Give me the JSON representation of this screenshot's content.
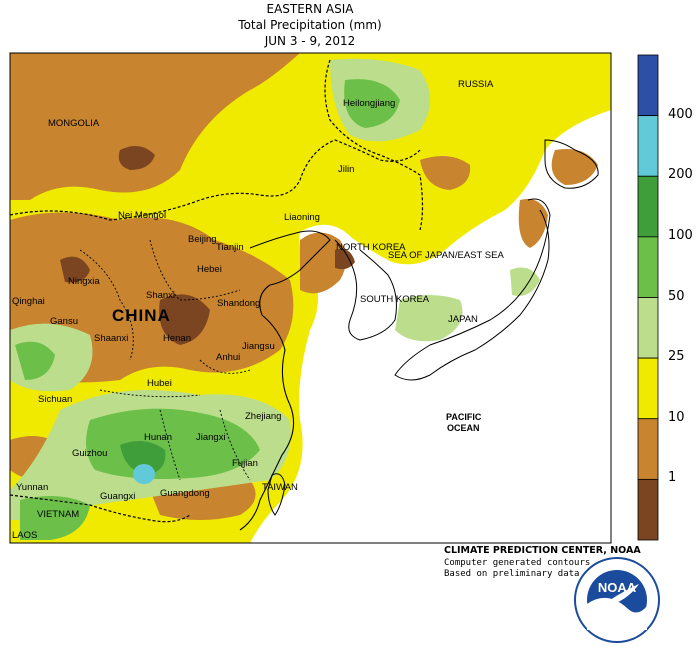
{
  "header": {
    "line1": "EASTERN ASIA",
    "line2": "Total Precipitation (mm)",
    "line3": "JUN 3 - 9, 2012"
  },
  "legend": {
    "bins": [
      {
        "color": "#2e4fa6"
      },
      {
        "color": "#62c9d8"
      },
      {
        "color": "#3f9e3a"
      },
      {
        "color": "#6cc04a"
      },
      {
        "color": "#bcde8c"
      },
      {
        "color": "#f0ea00"
      },
      {
        "color": "#c8842e"
      },
      {
        "color": "#7a4520"
      }
    ],
    "ticks": [
      "400",
      "200",
      "100",
      "50",
      "25",
      "10",
      "1"
    ]
  },
  "map": {
    "labels": {
      "russia": "RUSSIA",
      "mongolia": "MONGOLIA",
      "heilongjiang": "Heilongjiang",
      "jilin": "Jilin",
      "liaoning": "Liaoning",
      "nei_mongol": "Nei Mongol",
      "beijing": "Beijing",
      "tianjin": "Tianjin",
      "hebei": "Hebei",
      "north_korea": "NORTH KOREA",
      "south_korea": "SOUTH KOREA",
      "sea_of_japan": "SEA OF JAPAN/EAST SEA",
      "japan": "JAPAN",
      "ningxia": "Ningxia",
      "qinghai": "Qinghai",
      "gansu": "Gansu",
      "china": "CHINA",
      "shanxi": "Shanxi",
      "shandong": "Shandong",
      "shaanxi": "Shaanxi",
      "henan": "Henan",
      "jiangsu": "Jiangsu",
      "anhui": "Anhui",
      "sichuan": "Sichuan",
      "hubei": "Hubei",
      "zhejiang": "Zhejiang",
      "hunan": "Hunan",
      "jiangxi": "Jiangxi",
      "guizhou": "Guizhou",
      "fujian": "Fujian",
      "pacific": "PACIFIC",
      "ocean": "OCEAN",
      "yunnan": "Yunnan",
      "guangxi": "Guangxi",
      "guangdong": "Guangdong",
      "taiwan": "TAIWAN",
      "vietnam": "VIETNAM",
      "laos": "LAOS"
    }
  },
  "credits": {
    "line1": "CLIMATE PREDICTION CENTER, NOAA",
    "line2": "Computer generated contours",
    "line3": "Based on preliminary data"
  },
  "logo": {
    "text": "NOAA"
  }
}
